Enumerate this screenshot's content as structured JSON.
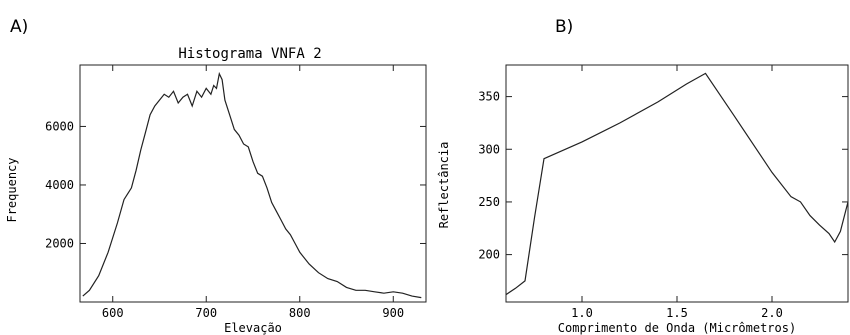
{
  "panels": {
    "a_label": "A)",
    "b_label": "B)"
  },
  "chart_data": [
    {
      "type": "line",
      "title": "Histograma VNFA 2",
      "xlabel": "Elevação",
      "ylabel": "Frequency",
      "xlim": [
        565,
        935
      ],
      "ylim": [
        0,
        8100
      ],
      "xticks": [
        600,
        700,
        800,
        900
      ],
      "yticks": [
        2000,
        4000,
        6000
      ],
      "grid": false,
      "series": [
        {
          "x": [
            568,
            575,
            585,
            595,
            605,
            612,
            620,
            625,
            630,
            635,
            640,
            645,
            650,
            655,
            660,
            665,
            670,
            675,
            680,
            685,
            690,
            695,
            700,
            705,
            708,
            711,
            714,
            717,
            720,
            725,
            730,
            735,
            740,
            745,
            750,
            755,
            760,
            765,
            770,
            775,
            780,
            785,
            790,
            795,
            800,
            810,
            820,
            830,
            840,
            850,
            860,
            870,
            880,
            890,
            900,
            910,
            920,
            930
          ],
          "y": [
            200,
            400,
            900,
            1700,
            2700,
            3500,
            3900,
            4500,
            5200,
            5800,
            6400,
            6700,
            6900,
            7100,
            7000,
            7200,
            6800,
            7000,
            7100,
            6700,
            7200,
            7000,
            7300,
            7100,
            7400,
            7300,
            7800,
            7600,
            6900,
            6400,
            5900,
            5700,
            5400,
            5300,
            4800,
            4400,
            4300,
            3900,
            3400,
            3100,
            2800,
            2500,
            2300,
            2000,
            1700,
            1300,
            1000,
            800,
            700,
            500,
            400,
            400,
            350,
            300,
            350,
            300,
            200,
            150
          ]
        }
      ]
    },
    {
      "type": "line",
      "title": "",
      "xlabel": "Comprimento de Onda (Micrômetros)",
      "ylabel": "Reflectância",
      "xlim": [
        0.6,
        2.4
      ],
      "ylim": [
        155,
        380
      ],
      "xticks": [
        1.0,
        1.5,
        2.0
      ],
      "xtick_labels": [
        "1.0",
        "1.5",
        "2.0"
      ],
      "yticks": [
        200,
        250,
        300,
        350
      ],
      "grid": false,
      "series": [
        {
          "x": [
            0.6,
            0.65,
            0.7,
            0.75,
            0.8,
            1.0,
            1.2,
            1.4,
            1.55,
            1.65,
            1.8,
            2.0,
            2.1,
            2.15,
            2.2,
            2.25,
            2.3,
            2.33,
            2.36,
            2.4
          ],
          "y": [
            162,
            168,
            175,
            235,
            291,
            307,
            325,
            345,
            362,
            372,
            332,
            278,
            255,
            250,
            237,
            228,
            220,
            212,
            222,
            250
          ]
        }
      ]
    }
  ]
}
